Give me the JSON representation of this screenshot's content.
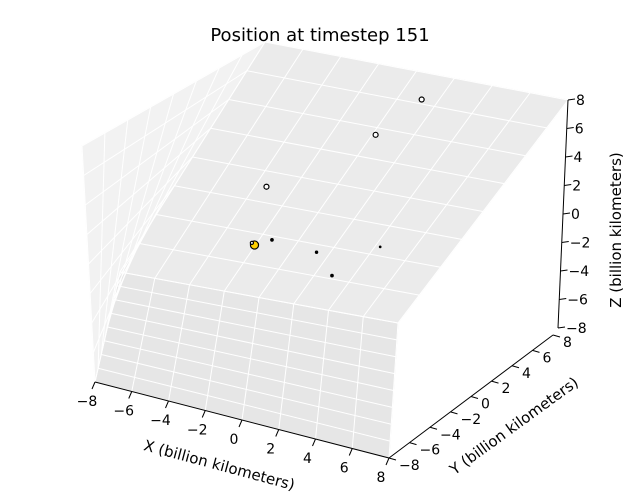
{
  "chart_data": {
    "type": "scatter",
    "projection": "3d",
    "title": "Position at timestep 151",
    "xlabel": "X (billion kilometers)",
    "ylabel": "Y (billion kilometers)",
    "zlabel": "Z (billion kilometers)",
    "xlim": [
      -8,
      8
    ],
    "ylim": [
      -8,
      8
    ],
    "zlim": [
      -8,
      8
    ],
    "x_ticks": [
      "−8",
      "−6",
      "−4",
      "−2",
      "0",
      "2",
      "4",
      "6",
      "8"
    ],
    "y_ticks": [
      "−8",
      "−6",
      "−4",
      "−2",
      "0",
      "2",
      "4",
      "6",
      "8"
    ],
    "z_ticks": [
      "−8",
      "−6",
      "−4",
      "−2",
      "0",
      "2",
      "4",
      "6",
      "8"
    ],
    "grid": true,
    "points": [
      {
        "body": "sun",
        "x": 0,
        "y": 0,
        "z": 0,
        "size": 6.5,
        "fill": "#ffd000",
        "stroke": "#000000",
        "hollow": false
      },
      {
        "body": "p1",
        "x": -0.15,
        "y": 0.1,
        "z": 0.05,
        "size": 2.5,
        "fill": "#ffffff",
        "stroke": "#000000",
        "hollow": true
      },
      {
        "body": "p2",
        "x": 0.9,
        "y": 0.6,
        "z": 0.35,
        "size": 2,
        "fill": "#000000",
        "stroke": "#000000",
        "hollow": false
      },
      {
        "body": "p3",
        "x": 3.3,
        "y": 0.9,
        "z": 0.15,
        "size": 1.8,
        "fill": "#000000",
        "stroke": "#000000",
        "hollow": false
      },
      {
        "body": "p4",
        "x": 4.2,
        "y": 0.2,
        "z": -0.8,
        "size": 2,
        "fill": "#000000",
        "stroke": "#000000",
        "hollow": false
      },
      {
        "body": "p5",
        "x": 6.5,
        "y": 4.0,
        "z": 0.1,
        "size": 1.2,
        "fill": "#000000",
        "stroke": "#000000",
        "hollow": false
      },
      {
        "body": "p6",
        "x": 0.6,
        "y": 0.6,
        "z": 3.8,
        "size": 4,
        "fill": "#ffffff",
        "stroke": "#000000",
        "hollow": true
      },
      {
        "body": "p7",
        "x": 6.2,
        "y": 4.6,
        "z": 7.2,
        "size": 4,
        "fill": "#ffffff",
        "stroke": "#000000",
        "hollow": true
      },
      {
        "body": "p8",
        "x": 8.4,
        "y": 8.2,
        "z": 8.6,
        "size": 4,
        "fill": "#ffffff",
        "stroke": "#000000",
        "hollow": true
      }
    ]
  }
}
